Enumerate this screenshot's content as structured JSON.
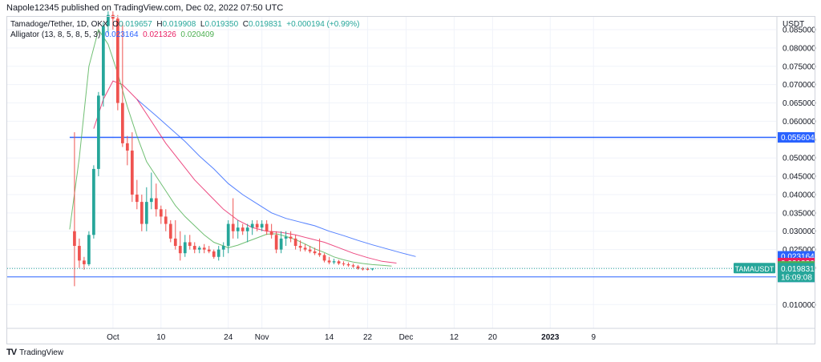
{
  "publisher_line": "Napole12345 published on TradingView.com, Dec 02, 2022 07:50 UTC",
  "legend": {
    "symbol": "Tamadoge/Tether, 1D, OKX",
    "o_label": "O",
    "o_value": "0.019657",
    "h_label": "H",
    "h_value": "0.019908",
    "l_label": "L",
    "l_value": "0.019350",
    "c_label": "C",
    "c_value": "0.019831",
    "change": "+0.000194 (+0.99%)",
    "alligator_label": "Alligator (13, 8, 5, 8, 5, 3)",
    "alligator_jaw": "0.023164",
    "alligator_teeth": "0.021326",
    "alligator_lips": "0.020409"
  },
  "footer": {
    "logo_text": "TV",
    "brand": "TradingView"
  },
  "colors": {
    "up": "#26a69a",
    "down": "#ef5350",
    "jaw": "#2962ff",
    "teeth": "#e91e63",
    "lips": "#4caf50",
    "hline": "#2962ff",
    "grid": "#f0f3fa"
  },
  "chart_data": {
    "type": "candlestick",
    "ylabel": "USDT",
    "y_ticks": [
      "0.085000",
      "0.080000",
      "0.075000",
      "0.070000",
      "0.065000",
      "0.060000",
      "0.055000",
      "0.050000",
      "0.045000",
      "0.040000",
      "0.035000",
      "0.030000",
      "0.025000",
      "0.020000",
      "0.010000"
    ],
    "y_tick_values": [
      0.085,
      0.08,
      0.075,
      0.07,
      0.065,
      0.06,
      0.055,
      0.05,
      0.045,
      0.04,
      0.035,
      0.03,
      0.025,
      0.02,
      0.01
    ],
    "ylim": [
      0.0035,
      0.0885
    ],
    "x_ticks": [
      {
        "label": "Oct",
        "day": 8,
        "bold": false
      },
      {
        "label": "10",
        "day": 18,
        "bold": false
      },
      {
        "label": "24",
        "day": 32,
        "bold": false
      },
      {
        "label": "Nov",
        "day": 39,
        "bold": false
      },
      {
        "label": "14",
        "day": 53,
        "bold": false
      },
      {
        "label": "22",
        "day": 61,
        "bold": false
      },
      {
        "label": "Dec",
        "day": 69,
        "bold": false
      },
      {
        "label": "12",
        "day": 79,
        "bold": false
      },
      {
        "label": "20",
        "day": 87,
        "bold": false
      },
      {
        "label": "2023",
        "day": 99,
        "bold": true
      },
      {
        "label": "9",
        "day": 108,
        "bold": false
      }
    ],
    "xlim": [
      -14,
      146
    ],
    "candles": [
      [
        0.03,
        0.057,
        0.015,
        0.026
      ],
      [
        0.026,
        0.028,
        0.02,
        0.022
      ],
      [
        0.022,
        0.023,
        0.0195,
        0.021
      ],
      [
        0.021,
        0.03,
        0.0205,
        0.029
      ],
      [
        0.029,
        0.048,
        0.028,
        0.047
      ],
      [
        0.047,
        0.068,
        0.045,
        0.067
      ],
      [
        0.067,
        0.087,
        0.064,
        0.086
      ],
      [
        0.086,
        0.09,
        0.084,
        0.089
      ],
      [
        0.089,
        0.09,
        0.085,
        0.088
      ],
      [
        0.088,
        0.089,
        0.063,
        0.065
      ],
      [
        0.065,
        0.087,
        0.053,
        0.054
      ],
      [
        0.054,
        0.056,
        0.048,
        0.052
      ],
      [
        0.052,
        0.057,
        0.038,
        0.04
      ],
      [
        0.04,
        0.044,
        0.036,
        0.038
      ],
      [
        0.038,
        0.04,
        0.03,
        0.032
      ],
      [
        0.032,
        0.042,
        0.03,
        0.038
      ],
      [
        0.038,
        0.046,
        0.036,
        0.039
      ],
      [
        0.039,
        0.043,
        0.034,
        0.036
      ],
      [
        0.036,
        0.037,
        0.032,
        0.034
      ],
      [
        0.034,
        0.036,
        0.03,
        0.032
      ],
      [
        0.032,
        0.033,
        0.027,
        0.028
      ],
      [
        0.028,
        0.033,
        0.025,
        0.026
      ],
      [
        0.026,
        0.03,
        0.022,
        0.024
      ],
      [
        0.024,
        0.029,
        0.023,
        0.027
      ],
      [
        0.027,
        0.029,
        0.025,
        0.026
      ],
      [
        0.026,
        0.027,
        0.024,
        0.025
      ],
      [
        0.025,
        0.026,
        0.024,
        0.0255
      ],
      [
        0.0255,
        0.0265,
        0.024,
        0.025
      ],
      [
        0.025,
        0.026,
        0.024,
        0.0245
      ],
      [
        0.0245,
        0.025,
        0.0225,
        0.023
      ],
      [
        0.023,
        0.026,
        0.022,
        0.025
      ],
      [
        0.025,
        0.027,
        0.023,
        0.026
      ],
      [
        0.026,
        0.033,
        0.024,
        0.032
      ],
      [
        0.032,
        0.039,
        0.028,
        0.03
      ],
      [
        0.03,
        0.033,
        0.028,
        0.031
      ],
      [
        0.031,
        0.032,
        0.029,
        0.03
      ],
      [
        0.03,
        0.032,
        0.027,
        0.031
      ],
      [
        0.031,
        0.033,
        0.029,
        0.032
      ],
      [
        0.032,
        0.033,
        0.03,
        0.031
      ],
      [
        0.031,
        0.033,
        0.03,
        0.032
      ],
      [
        0.032,
        0.033,
        0.029,
        0.03
      ],
      [
        0.03,
        0.032,
        0.028,
        0.029
      ],
      [
        0.029,
        0.03,
        0.024,
        0.025
      ],
      [
        0.025,
        0.03,
        0.024,
        0.028
      ],
      [
        0.028,
        0.03,
        0.026,
        0.0285
      ],
      [
        0.0285,
        0.03,
        0.027,
        0.028
      ],
      [
        0.028,
        0.029,
        0.025,
        0.026
      ],
      [
        0.026,
        0.0275,
        0.0245,
        0.0255
      ],
      [
        0.0255,
        0.0265,
        0.0245,
        0.025
      ],
      [
        0.025,
        0.026,
        0.024,
        0.0245
      ],
      [
        0.0245,
        0.0255,
        0.0235,
        0.024
      ],
      [
        0.024,
        0.028,
        0.023,
        0.0235
      ],
      [
        0.0235,
        0.024,
        0.0215,
        0.022
      ],
      [
        0.022,
        0.023,
        0.021,
        0.0215
      ],
      [
        0.0215,
        0.0225,
        0.021,
        0.0218
      ],
      [
        0.0218,
        0.0222,
        0.0208,
        0.0212
      ],
      [
        0.0212,
        0.0218,
        0.0205,
        0.021
      ],
      [
        0.021,
        0.0215,
        0.0203,
        0.0207
      ],
      [
        0.0207,
        0.0212,
        0.02,
        0.0204
      ],
      [
        0.0204,
        0.0208,
        0.0195,
        0.0198
      ],
      [
        0.0198,
        0.0202,
        0.0193,
        0.0197
      ],
      [
        0.0197,
        0.0201,
        0.0193,
        0.0196
      ],
      [
        0.0196,
        0.0199,
        0.0193,
        0.0198
      ]
    ],
    "alligator": {
      "jaw": {
        "name": "Jaw",
        "points": [
          [
            13,
            0.066
          ],
          [
            17,
            0.0615
          ],
          [
            20,
            0.058
          ],
          [
            23,
            0.0545
          ],
          [
            26,
            0.0505
          ],
          [
            29,
            0.047
          ],
          [
            32,
            0.043
          ],
          [
            35,
            0.04
          ],
          [
            38,
            0.0375
          ],
          [
            41,
            0.035
          ],
          [
            44,
            0.0335
          ],
          [
            47,
            0.0325
          ],
          [
            50,
            0.0315
          ],
          [
            53,
            0.03
          ],
          [
            56,
            0.0288
          ],
          [
            59,
            0.0275
          ],
          [
            62,
            0.0263
          ],
          [
            65,
            0.0252
          ],
          [
            68,
            0.0241
          ],
          [
            71,
            0.0231
          ]
        ]
      },
      "teeth": {
        "name": "Teeth",
        "points": [
          [
            4,
            0.058
          ],
          [
            6,
            0.066
          ],
          [
            8,
            0.071
          ],
          [
            10,
            0.07
          ],
          [
            13,
            0.066
          ],
          [
            16,
            0.06
          ],
          [
            19,
            0.054
          ],
          [
            22,
            0.049
          ],
          [
            25,
            0.044
          ],
          [
            28,
            0.04
          ],
          [
            31,
            0.036
          ],
          [
            34,
            0.033
          ],
          [
            37,
            0.031
          ],
          [
            40,
            0.03
          ],
          [
            43,
            0.0297
          ],
          [
            46,
            0.029
          ],
          [
            49,
            0.028
          ],
          [
            52,
            0.027
          ],
          [
            55,
            0.0255
          ],
          [
            58,
            0.024
          ],
          [
            61,
            0.0228
          ],
          [
            64,
            0.0218
          ],
          [
            67,
            0.0213
          ]
        ]
      },
      "lips": {
        "name": "Lips",
        "points": [
          [
            -1,
            0.0305
          ],
          [
            1,
            0.05
          ],
          [
            3,
            0.075
          ],
          [
            5,
            0.085
          ],
          [
            7,
            0.081
          ],
          [
            9,
            0.073
          ],
          [
            11,
            0.064
          ],
          [
            13,
            0.056
          ],
          [
            15,
            0.049
          ],
          [
            17,
            0.045
          ],
          [
            19,
            0.041
          ],
          [
            21,
            0.037
          ],
          [
            23,
            0.034
          ],
          [
            25,
            0.0315
          ],
          [
            27,
            0.029
          ],
          [
            29,
            0.027
          ],
          [
            31,
            0.026
          ],
          [
            32,
            0.0255
          ],
          [
            34,
            0.0262
          ],
          [
            36,
            0.0272
          ],
          [
            38,
            0.0282
          ],
          [
            40,
            0.0292
          ],
          [
            42,
            0.0293
          ],
          [
            44,
            0.0286
          ],
          [
            46,
            0.0277
          ],
          [
            48,
            0.0265
          ],
          [
            50,
            0.0252
          ],
          [
            52,
            0.0242
          ],
          [
            54,
            0.023
          ],
          [
            56,
            0.0222
          ],
          [
            58,
            0.0216
          ],
          [
            60,
            0.0212
          ],
          [
            62,
            0.0209
          ],
          [
            64,
            0.0207
          ],
          [
            66,
            0.0205
          ]
        ]
      }
    },
    "hlines": [
      {
        "value": 0.055604,
        "x_start": -1,
        "color": "#2962ff",
        "width": 1.5
      },
      {
        "value": 0.017534,
        "x_start": -14,
        "color": "#2962ff",
        "width": 1
      }
    ],
    "price_labels": [
      {
        "text": "0.055604",
        "value": 0.055604,
        "color": "#2962ff"
      },
      {
        "text": "0.023164",
        "value": 0.023164,
        "color": "#2962ff"
      },
      {
        "text": "0.021326",
        "value": 0.021326,
        "color": "#e91e63"
      },
      {
        "text": "0.020409",
        "value": 0.020409,
        "color": "#4caf50"
      },
      {
        "text": "0.017534",
        "value": 0.017534,
        "color": "#2962ff"
      }
    ],
    "last_price": {
      "symbol_tag": "TAMAUSDT",
      "price": "0.019831",
      "countdown": "16:09:08",
      "value": 0.019831,
      "color": "#26a69a"
    }
  }
}
